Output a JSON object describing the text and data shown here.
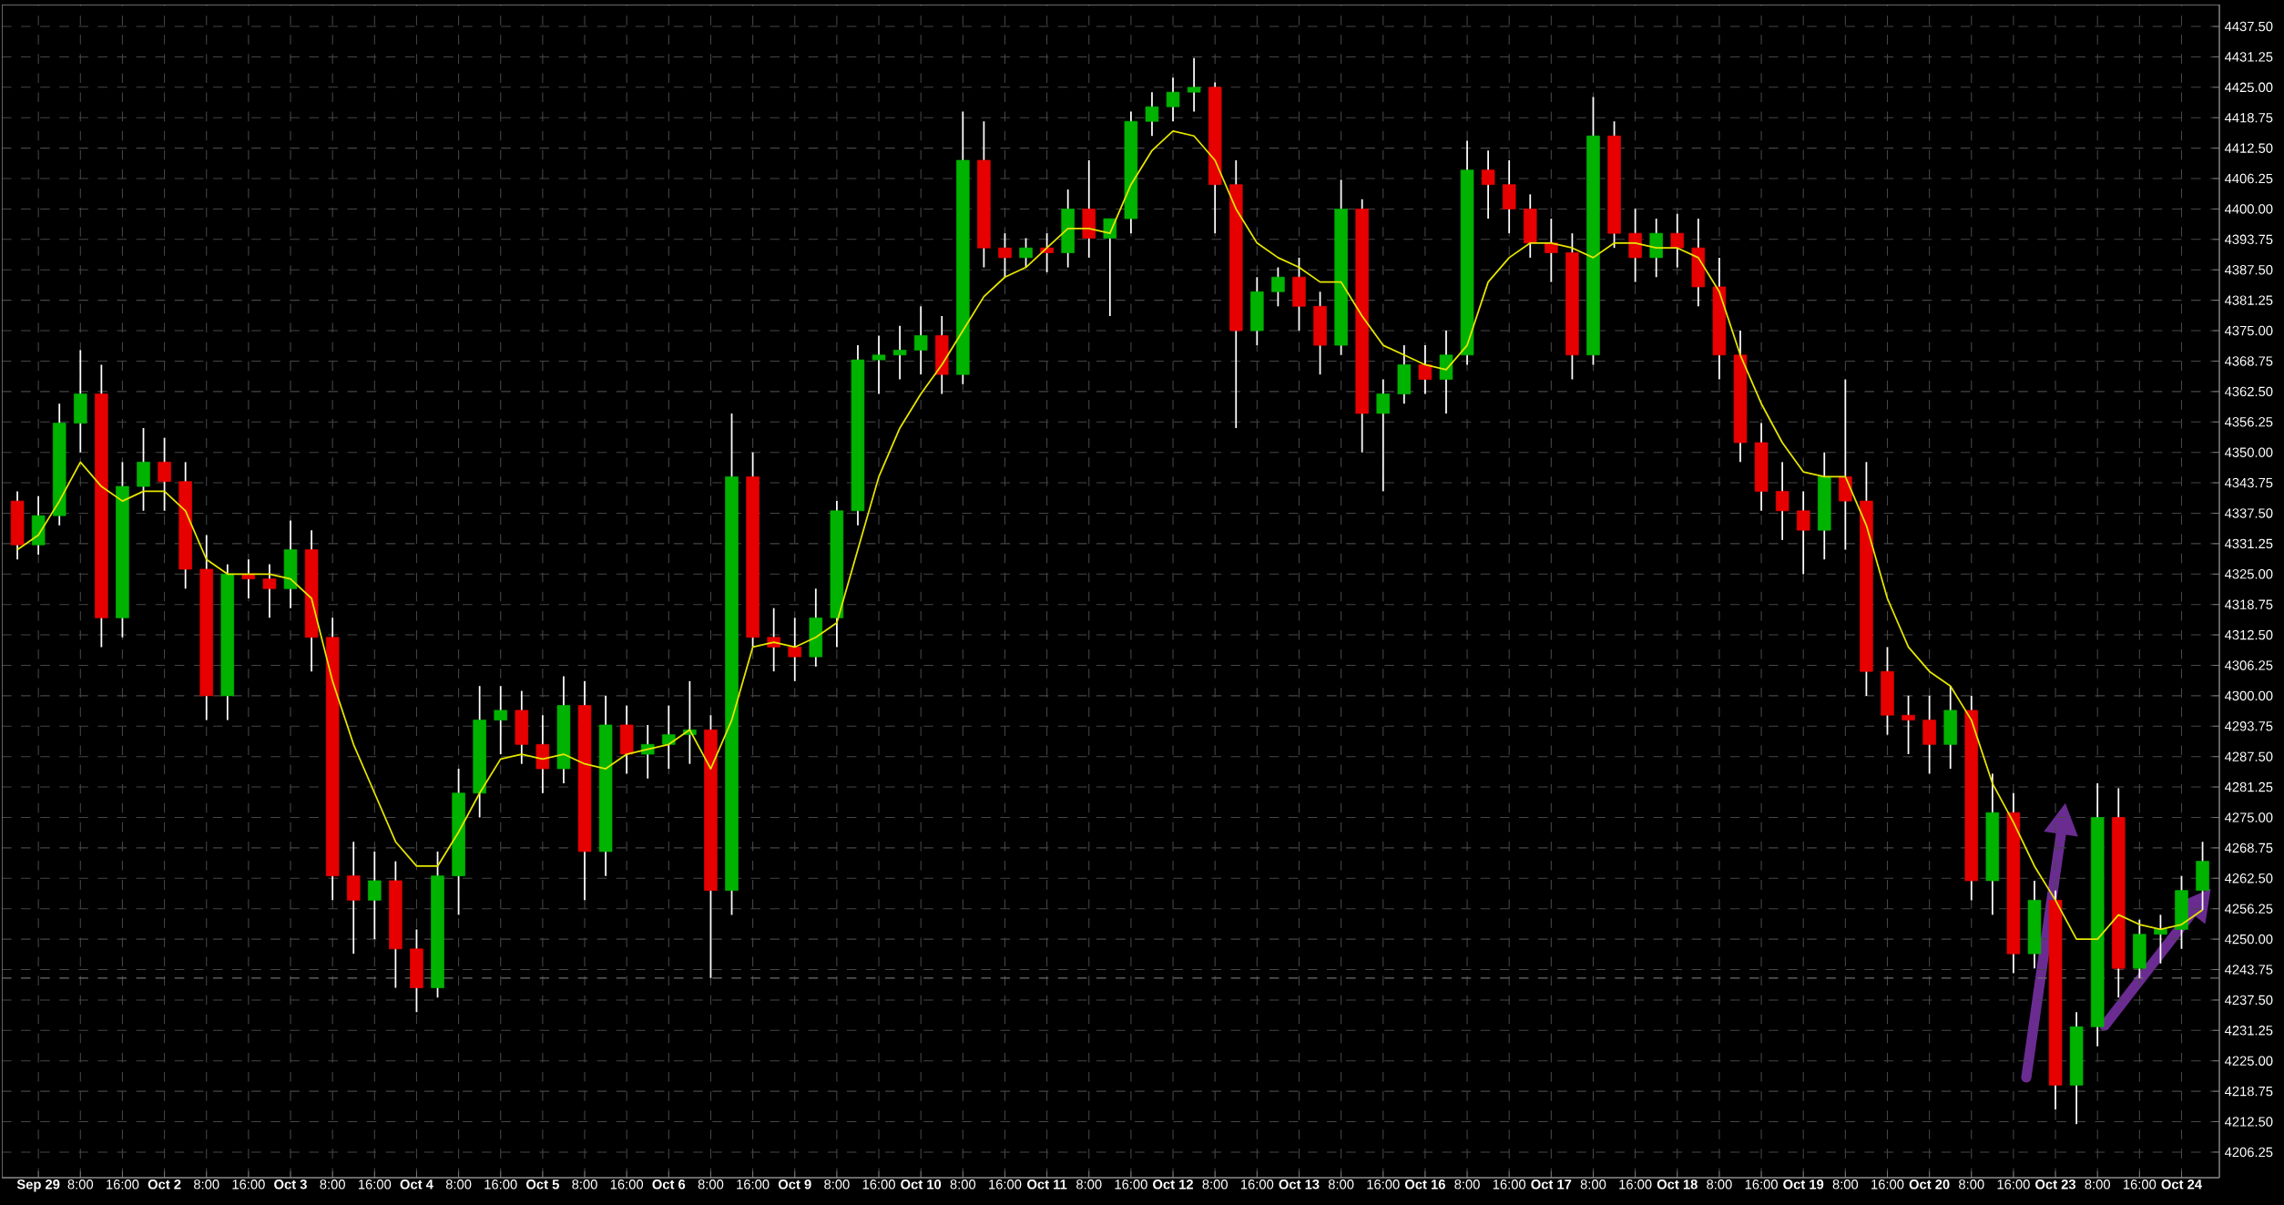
{
  "chart_data": {
    "type": "candlestick",
    "categories": [
      null,
      "Sep 29",
      null,
      "8:00",
      null,
      "16:00",
      null,
      "Oct 2",
      null,
      "8:00",
      null,
      "16:00",
      null,
      "Oct 3",
      null,
      "8:00",
      null,
      "16:00",
      null,
      "Oct 4",
      null,
      "8:00",
      null,
      "16:00",
      null,
      "Oct 5",
      null,
      "8:00",
      null,
      "16:00",
      null,
      "Oct 6",
      null,
      "8:00",
      null,
      "16:00",
      null,
      "Oct 9",
      null,
      "8:00",
      null,
      "16:00",
      null,
      "Oct 10",
      null,
      "8:00",
      null,
      "16:00",
      null,
      "Oct 11",
      null,
      "8:00",
      null,
      "16:00",
      null,
      "Oct 12",
      null,
      "8:00",
      null,
      "16:00",
      null,
      "Oct 13",
      null,
      "8:00",
      null,
      "16:00",
      null,
      "Oct 16",
      null,
      "8:00",
      null,
      "16:00",
      null,
      "Oct 17",
      null,
      "8:00",
      null,
      "16:00",
      null,
      "Oct 18",
      null,
      "8:00",
      null,
      "16:00",
      null,
      "Oct 19",
      null,
      "8:00",
      null,
      "16:00",
      null,
      "Oct 20",
      null,
      "8:00",
      null,
      "16:00",
      null,
      "Oct 23",
      null,
      "8:00",
      null,
      "16:00",
      null,
      "Oct 24",
      null
    ],
    "ohlc": [
      [
        4340,
        4342,
        4328,
        4331
      ],
      [
        4331,
        4341,
        4329,
        4337
      ],
      [
        4337,
        4360,
        4335,
        4356
      ],
      [
        4356,
        4371,
        4350,
        4362
      ],
      [
        4362,
        4368,
        4310,
        4316
      ],
      [
        4316,
        4348,
        4312,
        4343
      ],
      [
        4343,
        4355,
        4338,
        4348
      ],
      [
        4348,
        4353,
        4338,
        4344
      ],
      [
        4344,
        4348,
        4322,
        4326
      ],
      [
        4326,
        4333,
        4295,
        4300
      ],
      [
        4300,
        4327,
        4295,
        4325
      ],
      [
        4325,
        4328,
        4320,
        4324
      ],
      [
        4324,
        4327,
        4316,
        4322
      ],
      [
        4322,
        4336,
        4318,
        4330
      ],
      [
        4330,
        4334,
        4305,
        4312
      ],
      [
        4312,
        4316,
        4258,
        4263
      ],
      [
        4263,
        4270,
        4247,
        4258
      ],
      [
        4258,
        4268,
        4250,
        4262
      ],
      [
        4262,
        4266,
        4240,
        4248
      ],
      [
        4248,
        4252,
        4235,
        4240
      ],
      [
        4240,
        4268,
        4238,
        4263
      ],
      [
        4263,
        4285,
        4255,
        4280
      ],
      [
        4280,
        4302,
        4275,
        4295
      ],
      [
        4295,
        4302,
        4288,
        4297
      ],
      [
        4297,
        4301,
        4286,
        4290
      ],
      [
        4290,
        4296,
        4280,
        4285
      ],
      [
        4285,
        4304,
        4282,
        4298
      ],
      [
        4298,
        4303,
        4258,
        4268
      ],
      [
        4268,
        4300,
        4263,
        4294
      ],
      [
        4294,
        4298,
        4284,
        4288
      ],
      [
        4288,
        4294,
        4283,
        4290
      ],
      [
        4290,
        4298,
        4285,
        4292
      ],
      [
        4292,
        4303,
        4286,
        4293
      ],
      [
        4293,
        4296,
        4242,
        4260
      ],
      [
        4260,
        4358,
        4255,
        4345
      ],
      [
        4345,
        4350,
        4310,
        4312
      ],
      [
        4312,
        4318,
        4305,
        4310
      ],
      [
        4310,
        4316,
        4303,
        4308
      ],
      [
        4308,
        4322,
        4306,
        4316
      ],
      [
        4316,
        4340,
        4310,
        4338
      ],
      [
        4338,
        4372,
        4335,
        4369
      ],
      [
        4369,
        4374,
        4362,
        4370
      ],
      [
        4370,
        4376,
        4365,
        4371
      ],
      [
        4371,
        4380,
        4366,
        4374
      ],
      [
        4374,
        4378,
        4362,
        4366
      ],
      [
        4366,
        4420,
        4364,
        4410
      ],
      [
        4410,
        4418,
        4388,
        4392
      ],
      [
        4392,
        4395,
        4386,
        4390
      ],
      [
        4390,
        4394,
        4388,
        4392
      ],
      [
        4392,
        4395,
        4387,
        4391
      ],
      [
        4391,
        4404,
        4388,
        4400
      ],
      [
        4400,
        4410,
        4390,
        4394
      ],
      [
        4394,
        4398,
        4378,
        4398
      ],
      [
        4398,
        4420,
        4395,
        4418
      ],
      [
        4418,
        4424,
        4415,
        4421
      ],
      [
        4421,
        4427,
        4418,
        4424
      ],
      [
        4424,
        4431,
        4420,
        4425
      ],
      [
        4425,
        4426,
        4395,
        4405
      ],
      [
        4405,
        4410,
        4355,
        4375
      ],
      [
        4375,
        4386,
        4372,
        4383
      ],
      [
        4383,
        4388,
        4380,
        4386
      ],
      [
        4386,
        4390,
        4375,
        4380
      ],
      [
        4380,
        4383,
        4366,
        4372
      ],
      [
        4372,
        4406,
        4370,
        4400
      ],
      [
        4400,
        4402,
        4350,
        4358
      ],
      [
        4358,
        4365,
        4342,
        4362
      ],
      [
        4362,
        4372,
        4360,
        4368
      ],
      [
        4368,
        4372,
        4362,
        4365
      ],
      [
        4365,
        4375,
        4358,
        4370
      ],
      [
        4370,
        4414,
        4368,
        4408
      ],
      [
        4408,
        4412,
        4398,
        4405
      ],
      [
        4405,
        4410,
        4395,
        4400
      ],
      [
        4400,
        4403,
        4390,
        4393
      ],
      [
        4393,
        4398,
        4385,
        4391
      ],
      [
        4391,
        4395,
        4365,
        4370
      ],
      [
        4370,
        4423,
        4368,
        4415
      ],
      [
        4415,
        4418,
        4392,
        4395
      ],
      [
        4395,
        4400,
        4385,
        4390
      ],
      [
        4390,
        4398,
        4386,
        4395
      ],
      [
        4395,
        4399,
        4388,
        4392
      ],
      [
        4392,
        4398,
        4380,
        4384
      ],
      [
        4384,
        4390,
        4365,
        4370
      ],
      [
        4370,
        4375,
        4348,
        4352
      ],
      [
        4352,
        4356,
        4338,
        4342
      ],
      [
        4342,
        4348,
        4332,
        4338
      ],
      [
        4338,
        4342,
        4325,
        4334
      ],
      [
        4334,
        4350,
        4328,
        4345
      ],
      [
        4345,
        4365,
        4330,
        4340
      ],
      [
        4340,
        4348,
        4300,
        4305
      ],
      [
        4305,
        4310,
        4292,
        4296
      ],
      [
        4296,
        4300,
        4288,
        4295
      ],
      [
        4295,
        4300,
        4284,
        4290
      ],
      [
        4290,
        4302,
        4285,
        4297
      ],
      [
        4297,
        4300,
        4258,
        4262
      ],
      [
        4262,
        4284,
        4255,
        4276
      ],
      [
        4276,
        4280,
        4243,
        4247
      ],
      [
        4247,
        4262,
        4244,
        4258
      ],
      [
        4258,
        4260,
        4215,
        4220
      ],
      [
        4220,
        4235,
        4212,
        4232
      ],
      [
        4232,
        4282,
        4228,
        4275
      ],
      [
        4275,
        4281,
        4238,
        4244
      ],
      [
        4244,
        4254,
        4242,
        4251
      ],
      [
        4251,
        4255,
        4245,
        4252
      ],
      [
        4252,
        4263,
        4248,
        4260
      ],
      [
        4260,
        4270,
        4256,
        4266
      ]
    ],
    "colors": [
      "#e60000",
      "#00b300",
      "#00b300",
      "#00b300",
      "#e60000",
      "#00b300",
      "#00b300",
      "#e60000",
      "#e60000",
      "#e60000",
      "#00b300",
      "#e60000",
      "#e60000",
      "#00b300",
      "#e60000",
      "#e60000",
      "#e60000",
      "#00b300",
      "#e60000",
      "#e60000",
      "#00b300",
      "#00b300",
      "#00b300",
      "#00b300",
      "#e60000",
      "#e60000",
      "#00b300",
      "#e60000",
      "#00b300",
      "#e60000",
      "#00b300",
      "#00b300",
      "#00b300",
      "#e60000",
      "#00b300",
      "#e60000",
      "#e60000",
      "#e60000",
      "#00b300",
      "#00b300",
      "#00b300",
      "#00b300",
      "#00b300",
      "#00b300",
      "#e60000",
      "#00b300",
      "#e60000",
      "#e60000",
      "#00b300",
      "#e60000",
      "#00b300",
      "#e60000",
      "#00b300",
      "#00b300",
      "#00b300",
      "#00b300",
      "#00b300",
      "#e60000",
      "#e60000",
      "#00b300",
      "#00b300",
      "#e60000",
      "#e60000",
      "#00b300",
      "#e60000",
      "#00b300",
      "#00b300",
      "#e60000",
      "#00b300",
      "#00b300",
      "#e60000",
      "#e60000",
      "#e60000",
      "#e60000",
      "#e60000",
      "#00b300",
      "#e60000",
      "#e60000",
      "#00b300",
      "#e60000",
      "#e60000",
      "#e60000",
      "#e60000",
      "#e60000",
      "#e60000",
      "#e60000",
      "#00b300",
      "#e60000",
      "#e60000",
      "#e60000",
      "#e60000",
      "#e60000",
      "#00b300",
      "#e60000",
      "#00b300",
      "#e60000",
      "#00b300",
      "#e60000",
      "#00b300",
      "#00b300",
      "#e60000",
      "#00b300",
      "#00b300",
      "#00b300",
      "#00b300"
    ],
    "series": [
      {
        "type": "line",
        "color": "#e6e600",
        "values": [
          4330,
          4333,
          4340,
          4348,
          4343,
          4340,
          4342,
          4342,
          4338,
          4328,
          4325,
          4325,
          4325,
          4324,
          4320,
          4303,
          4290,
          4280,
          4270,
          4265,
          4265,
          4272,
          4280,
          4287,
          4288,
          4287,
          4288,
          4286,
          4285,
          4288,
          4289,
          4290,
          4293,
          4285,
          4295,
          4310,
          4311,
          4310,
          4312,
          4315,
          4330,
          4345,
          4355,
          4362,
          4368,
          4375,
          4382,
          4386,
          4388,
          4392,
          4396,
          4396,
          4395,
          4405,
          4412,
          4416,
          4415,
          4410,
          4400,
          4393,
          4390,
          4388,
          4385,
          4385,
          4378,
          4372,
          4370,
          4368,
          4367,
          4372,
          4385,
          4390,
          4393,
          4393,
          4392,
          4390,
          4393,
          4393,
          4392,
          4392,
          4390,
          4383,
          4370,
          4360,
          4352,
          4346,
          4345,
          4345,
          4335,
          4320,
          4310,
          4305,
          4302,
          4295,
          4282,
          4274,
          4265,
          4258,
          4250,
          4250,
          4255,
          4253,
          4252,
          4253,
          4256
        ]
      }
    ],
    "ylim": [
      4201,
      4442
    ],
    "yticks": [
      4206.25,
      {
        "value": 4212.5,
        "label": "4212.50"
      },
      4218.75,
      {
        "value": 4225,
        "label": "4225.00"
      },
      4231.25,
      {
        "value": 4237.5,
        "label": "4237.50"
      },
      4243.75,
      {
        "value": 4250,
        "label": "4250.00"
      },
      4256.25,
      {
        "value": 4262.5,
        "label": "4262.50"
      },
      4268.75,
      {
        "value": 4275,
        "label": "4275.00"
      },
      4281.25,
      {
        "value": 4287.5,
        "label": "4287.50"
      },
      4293.75,
      {
        "value": 4300,
        "label": "4300.00"
      },
      4306.25,
      {
        "value": 4312.5,
        "label": "4312.50"
      },
      4318.75,
      {
        "value": 4325,
        "label": "4325.00"
      },
      4331.25,
      {
        "value": 4337.5,
        "label": "4337.50"
      },
      4343.75,
      {
        "value": 4350,
        "label": "4350.00"
      },
      4356.25,
      {
        "value": 4362.5,
        "label": "4362.50"
      },
      4368.75,
      {
        "value": 4375,
        "label": "4375.00"
      },
      4381.25,
      {
        "value": 4387.5,
        "label": "4387.50"
      },
      4393.75,
      {
        "value": 4400,
        "label": "4400.00"
      },
      4406.25,
      {
        "value": 4412.5,
        "label": "4412.50"
      },
      4418.75,
      {
        "value": 4425,
        "label": "4425.00"
      },
      4431.25,
      {
        "value": 4437.5,
        "label": "4437.50"
      }
    ],
    "ref_lines": [
      {
        "axis": "y",
        "value": 4242,
        "line_style": "dashed",
        "color": "#6e6e6e"
      }
    ],
    "grid": true
  }
}
